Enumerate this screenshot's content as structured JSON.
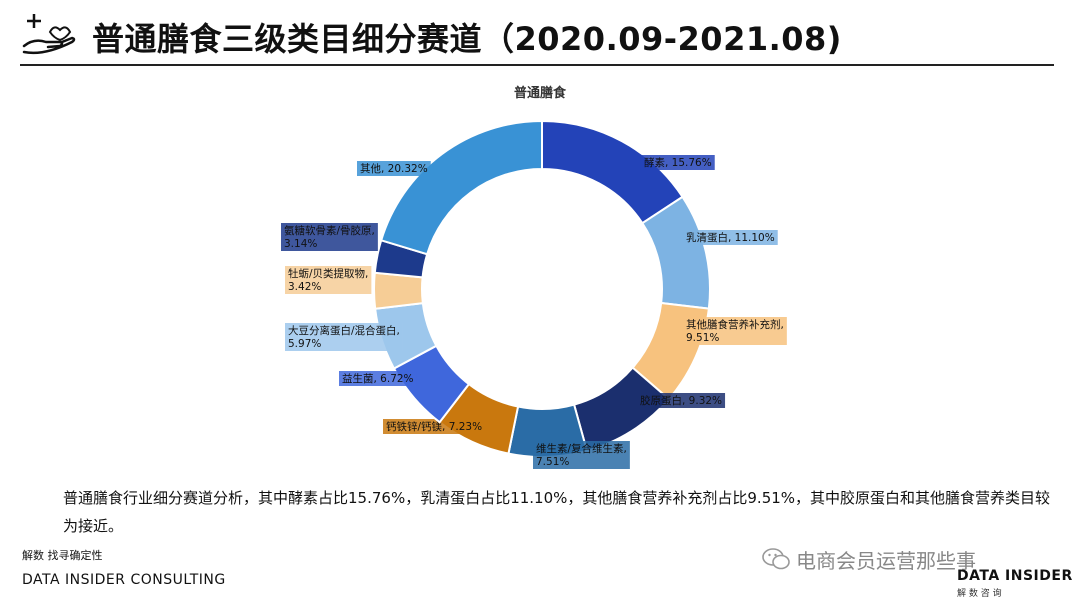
{
  "header": {
    "title": "普通膳食三级类目细分赛道（2020.09-2021.08)",
    "icon": "hand-plus-icon"
  },
  "chart_data": {
    "type": "donut",
    "title": "普通膳食",
    "slices": [
      {
        "label": "酵素",
        "value": 15.76,
        "text": "酵素, 15.76%",
        "color": "#2343B8"
      },
      {
        "label": "乳清蛋白",
        "value": 11.1,
        "text": "乳清蛋白, 11.10%",
        "color": "#7DB3E3"
      },
      {
        "label": "其他膳食营养补充剂",
        "value": 9.51,
        "text": "其他膳食营养补充剂, 9.51%",
        "color": "#F7C27E"
      },
      {
        "label": "胶原蛋白",
        "value": 9.32,
        "text": "胶原蛋白, 9.32%",
        "color": "#1B2F6E"
      },
      {
        "label": "维生素/复合维生素",
        "value": 7.51,
        "text": "维生素/复合维生素, 7.51%",
        "color": "#2A6CA6"
      },
      {
        "label": "钙铁锌/钙镁",
        "value": 7.23,
        "text": "钙铁锌/钙镁, 7.23%",
        "color": "#C9780E"
      },
      {
        "label": "益生菌",
        "value": 6.72,
        "text": "益生菌, 6.72%",
        "color": "#3F67DC"
      },
      {
        "label": "大豆分离蛋白/混合蛋白",
        "value": 5.97,
        "text": "大豆分离蛋白/混合蛋白, 5.97%",
        "color": "#9DC7EC"
      },
      {
        "label": "牡蛎/贝类提取物",
        "value": 3.42,
        "text": "牡蛎/贝类提取物, 3.42%",
        "color": "#F6CD96"
      },
      {
        "label": "氨糖软骨素/骨胶原",
        "value": 3.14,
        "text": "氨糖软骨素/骨胶原, 3.14%",
        "color": "#1D3A8C"
      },
      {
        "label": "其他",
        "value": 20.32,
        "text": "其他, 20.32%",
        "color": "#3992D5"
      }
    ]
  },
  "analysis": "普通膳食行业细分赛道分析，其中酵素占比15.76%，乳清蛋白占比11.10%，其他膳食营养补充剂占比9.51%，其中胶原蛋白和其他膳食营养类目较为接近。",
  "footer": {
    "slogan": "解数 找寻确定性",
    "company": "DATA INSIDER CONSULTING",
    "watermark": "电商会员运营那些事",
    "brand_en": "DATA INSIDER",
    "brand_cn": "解 数 咨 询"
  }
}
